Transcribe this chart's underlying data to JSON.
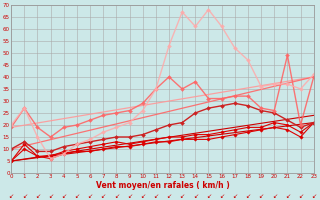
{
  "xlabel": "Vent moyen/en rafales ( km/h )",
  "bg_color": "#cce8e8",
  "grid_color": "#aaaaaa",
  "xlim": [
    0,
    23
  ],
  "ylim": [
    0,
    70
  ],
  "yticks": [
    0,
    5,
    10,
    15,
    20,
    25,
    30,
    35,
    40,
    45,
    50,
    55,
    60,
    65,
    70
  ],
  "xticks": [
    0,
    1,
    2,
    3,
    4,
    5,
    6,
    7,
    8,
    9,
    10,
    11,
    12,
    13,
    14,
    15,
    16,
    17,
    18,
    19,
    20,
    21,
    22,
    23
  ],
  "lines": [
    {
      "x": [
        0,
        23
      ],
      "y": [
        5,
        21
      ],
      "color": "#cc0000",
      "lw": 0.8,
      "marker": null,
      "markersize": 0,
      "alpha": 1.0
    },
    {
      "x": [
        0,
        23
      ],
      "y": [
        5,
        24
      ],
      "color": "#cc0000",
      "lw": 0.8,
      "marker": null,
      "markersize": 0,
      "alpha": 1.0
    },
    {
      "x": [
        0,
        23
      ],
      "y": [
        19,
        40
      ],
      "color": "#ff9999",
      "lw": 0.9,
      "marker": null,
      "markersize": 0,
      "alpha": 0.9
    },
    {
      "x": [
        0,
        23
      ],
      "y": [
        10,
        40
      ],
      "color": "#ff6666",
      "lw": 0.9,
      "marker": null,
      "markersize": 0,
      "alpha": 0.9
    },
    {
      "x": [
        0,
        1,
        2,
        3,
        4,
        5,
        6,
        7,
        8,
        9,
        10,
        11,
        12,
        13,
        14,
        15,
        16,
        17,
        18,
        19,
        20,
        21,
        22,
        23
      ],
      "y": [
        5,
        10,
        7,
        6,
        8,
        9,
        9,
        10,
        11,
        11,
        12,
        13,
        13,
        14,
        14,
        14,
        15,
        16,
        17,
        18,
        19,
        18,
        15,
        21
      ],
      "color": "#dd0000",
      "lw": 0.8,
      "marker": "D",
      "markersize": 1.8,
      "alpha": 1.0
    },
    {
      "x": [
        0,
        1,
        2,
        3,
        4,
        5,
        6,
        7,
        8,
        9,
        10,
        11,
        12,
        13,
        14,
        15,
        16,
        17,
        18,
        19,
        20,
        21,
        22,
        23
      ],
      "y": [
        5,
        12,
        7,
        7,
        9,
        10,
        11,
        12,
        13,
        12,
        13,
        14,
        15,
        15,
        16,
        16,
        17,
        18,
        19,
        19,
        21,
        20,
        17,
        21
      ],
      "color": "#dd0000",
      "lw": 0.8,
      "marker": "D",
      "markersize": 1.8,
      "alpha": 1.0
    },
    {
      "x": [
        0,
        1,
        2,
        3,
        4,
        5,
        6,
        7,
        8,
        9,
        10,
        11,
        12,
        13,
        14,
        15,
        16,
        17,
        18,
        19,
        20,
        21,
        22,
        23
      ],
      "y": [
        10,
        13,
        9,
        9,
        11,
        12,
        13,
        14,
        15,
        15,
        16,
        18,
        20,
        21,
        25,
        27,
        28,
        29,
        28,
        26,
        25,
        22,
        19,
        21
      ],
      "color": "#cc2222",
      "lw": 1.0,
      "marker": "D",
      "markersize": 2.0,
      "alpha": 1.0
    },
    {
      "x": [
        0,
        1,
        2,
        3,
        4,
        5,
        6,
        7,
        8,
        9,
        10,
        11,
        12,
        13,
        14,
        15,
        16,
        17,
        18,
        19,
        20,
        21,
        22,
        23
      ],
      "y": [
        19,
        27,
        19,
        15,
        19,
        20,
        22,
        24,
        25,
        26,
        29,
        35,
        40,
        35,
        38,
        31,
        31,
        32,
        32,
        27,
        26,
        49,
        20,
        40
      ],
      "color": "#ff6666",
      "lw": 1.0,
      "marker": "D",
      "markersize": 2.0,
      "alpha": 0.9
    },
    {
      "x": [
        0,
        1,
        2,
        3,
        4,
        5,
        6,
        7,
        8,
        9,
        10,
        11,
        12,
        13,
        14,
        15,
        16,
        17,
        18,
        19,
        20,
        21,
        22,
        23
      ],
      "y": [
        20,
        27,
        15,
        6,
        8,
        12,
        14,
        17,
        19,
        21,
        26,
        35,
        53,
        67,
        61,
        68,
        61,
        52,
        47,
        36,
        37,
        37,
        35,
        41
      ],
      "color": "#ffaaaa",
      "lw": 1.0,
      "marker": "D",
      "markersize": 2.0,
      "alpha": 0.85
    }
  ]
}
